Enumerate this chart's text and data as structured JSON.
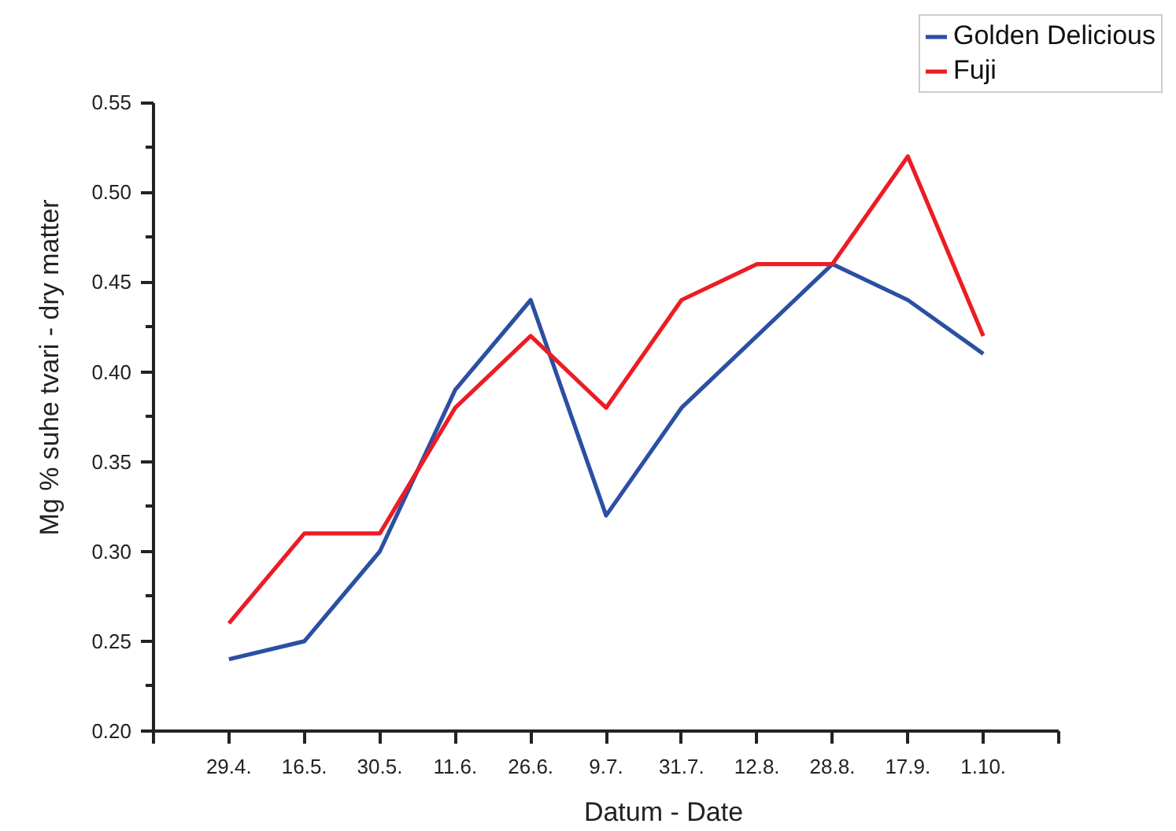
{
  "chart_data": {
    "type": "line",
    "xlabel": "Datum - Date",
    "ylabel": "Mg % suhe tvari - dry matter",
    "categories": [
      "29.4.",
      "16.5.",
      "30.5.",
      "11.6.",
      "26.6.",
      "9.7.",
      "31.7.",
      "12.8.",
      "28.8.",
      "17.9.",
      "1.10."
    ],
    "series": [
      {
        "name": "Golden Delicious",
        "color": "#2b4fa3",
        "values": [
          0.24,
          0.25,
          0.3,
          0.39,
          0.44,
          0.32,
          0.38,
          0.42,
          0.46,
          0.44,
          0.41
        ]
      },
      {
        "name": "Fuji",
        "color": "#ed1c24",
        "values": [
          0.26,
          0.31,
          0.31,
          0.38,
          0.42,
          0.38,
          0.44,
          0.46,
          0.46,
          0.52,
          0.42
        ]
      }
    ],
    "ylim": [
      0.2,
      0.55
    ],
    "yticks": [
      {
        "value": 0.2,
        "label": "0.20"
      },
      0.25,
      {
        "value": 0.3,
        "label": "0.30"
      },
      0.35,
      {
        "value": 0.4,
        "label": "0.40"
      },
      0.45,
      {
        "value": 0.5,
        "label": "0.50"
      },
      0.55
    ],
    "legend": "top right",
    "line_style": "solid"
  }
}
